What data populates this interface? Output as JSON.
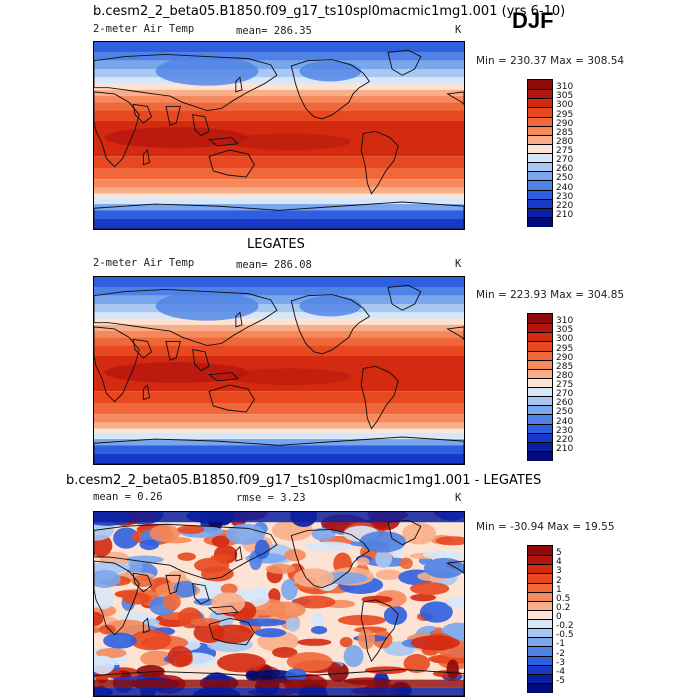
{
  "season": "DJF",
  "panels": [
    {
      "title": "b.cesm2_2_beta05.B1850.f09_g17_ts10spl0macmic1mg1.001 (yrs 6-10)",
      "left_label": "2-meter Air Temp",
      "center_label": "mean=  286.35",
      "right_label": "K",
      "minmax": "Min = 230.37  Max = 308.54",
      "type": "absolute",
      "mean_value": 286.35
    },
    {
      "title": "LEGATES",
      "left_label": "2-meter Air Temp",
      "center_label": "mean=  286.08",
      "right_label": "K",
      "minmax": "Min = 223.93  Max = 304.85",
      "type": "absolute",
      "mean_value": 286.08
    },
    {
      "title": "b.cesm2_2_beta05.B1850.f09_g17_ts10spl0macmic1mg1.001 - LEGATES",
      "left_label": "mean =    0.26",
      "center_label": "rmse =    3.23",
      "right_label": "K",
      "minmax": "Min = -30.94  Max =  19.55",
      "type": "difference",
      "mean_value": 0.26,
      "rmse_value": 3.23
    }
  ],
  "colorbars": {
    "absolute": {
      "labels": [
        "310",
        "305",
        "300",
        "295",
        "290",
        "285",
        "280",
        "275",
        "270",
        "260",
        "250",
        "240",
        "230",
        "220",
        "210"
      ],
      "colors": [
        "#8c0a0a",
        "#b4150f",
        "#d42a10",
        "#e8481f",
        "#f0673a",
        "#f5895c",
        "#f9ae8a",
        "#fce3d3",
        "#d7e7fa",
        "#a8c8f2",
        "#7aa6ec",
        "#4f82e6",
        "#2d5fe0",
        "#1838c8",
        "#0a20a0",
        "#000a78"
      ]
    },
    "difference": {
      "labels": [
        "5",
        "4",
        "3",
        "2",
        "1",
        "0.5",
        "0.2",
        "0",
        "-0.2",
        "-0.5",
        "-1",
        "-2",
        "-3",
        "-4",
        "-5"
      ],
      "colors": [
        "#8c0a0a",
        "#b4150f",
        "#d42a10",
        "#e8481f",
        "#f0673a",
        "#f5895c",
        "#f9ae8a",
        "#fce3d3",
        "#d7e7fa",
        "#a8c8f2",
        "#7aa6ec",
        "#4f82e6",
        "#2d5fe0",
        "#1838c8",
        "#0a20a0",
        "#000a78"
      ]
    }
  }
}
